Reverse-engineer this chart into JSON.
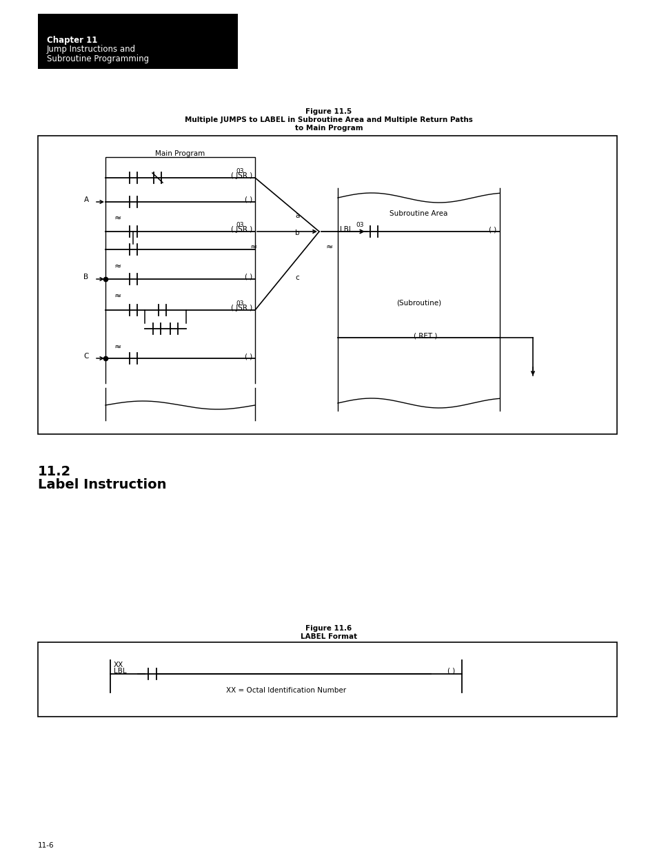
{
  "page_bg": "#ffffff",
  "header_bg": "#000000",
  "header_text_color": "#ffffff",
  "header_line1": "Chapter 11",
  "header_line2": "Jump Instructions and",
  "header_line3": "Subroutine Programming",
  "fig115_title_line1": "Figure 11.5",
  "fig115_title_line2": "Multiple JUMPS to LABEL in Subroutine Area and Multiple Return Paths",
  "fig115_title_line3": "to Main Program",
  "fig116_title_line1": "Figure 11.6",
  "fig116_title_line2": "LABEL Format",
  "section_num": "11.2",
  "section_title": "Label Instruction",
  "page_num": "11-6",
  "text_color": "#000000",
  "line_color": "#000000"
}
